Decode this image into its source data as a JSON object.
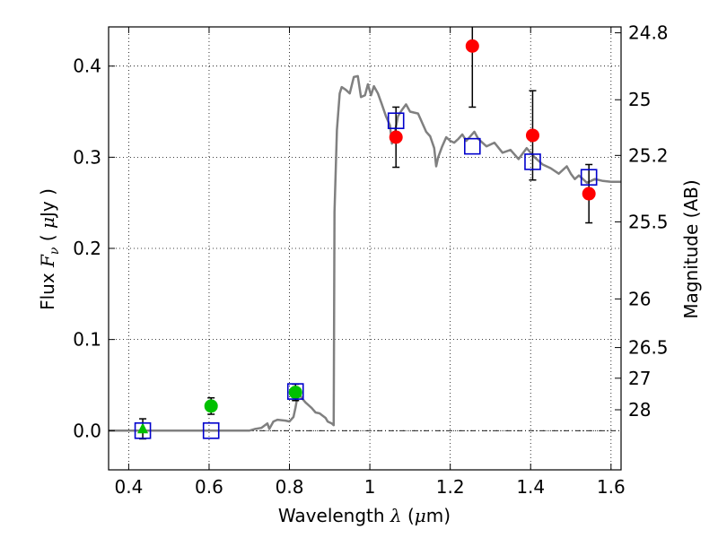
{
  "chart_data": {
    "type": "line",
    "xlabel": {
      "prefix": "Wavelength  ",
      "symbol": "λ",
      "mid": " (",
      "unit_symbol": "μ",
      "unit": "m)"
    },
    "ylabel": {
      "prefix": "Flux  ",
      "symbol": "F",
      "sub": "ν",
      "mid": "  ( ",
      "unit_symbol": "μ",
      "unit": "Jy )"
    },
    "y2label": "Magnitude (AB)",
    "xlim": [
      0.35,
      1.625
    ],
    "ylim": [
      -0.043,
      0.443
    ],
    "grid": true,
    "x_ticks": [
      {
        "v": 0.4,
        "label": "0.4"
      },
      {
        "v": 0.6,
        "label": "0.6"
      },
      {
        "v": 0.8,
        "label": "0.8"
      },
      {
        "v": 1.0,
        "label": "1"
      },
      {
        "v": 1.2,
        "label": "1.2"
      },
      {
        "v": 1.4,
        "label": "1.4"
      },
      {
        "v": 1.6,
        "label": "1.6"
      }
    ],
    "y_ticks": [
      {
        "v": 0.0,
        "label": "0.0"
      },
      {
        "v": 0.1,
        "label": "0.1"
      },
      {
        "v": 0.2,
        "label": "0.2"
      },
      {
        "v": 0.3,
        "label": "0.3"
      },
      {
        "v": 0.4,
        "label": "0.4"
      }
    ],
    "mag_ticks": [
      {
        "mag": 24.8,
        "label": "24.8"
      },
      {
        "mag": 25.0,
        "label": "25"
      },
      {
        "mag": 25.2,
        "label": "25.2"
      },
      {
        "mag": 25.5,
        "label": "25.5"
      },
      {
        "mag": 26.0,
        "label": "26"
      },
      {
        "mag": 26.5,
        "label": "26.5"
      },
      {
        "mag": 27.0,
        "label": "27"
      },
      {
        "mag": 28.0,
        "label": "28"
      }
    ],
    "model_sed": {
      "color": "#808080",
      "points": [
        [
          0.35,
          0.0
        ],
        [
          0.7,
          0.0
        ],
        [
          0.715,
          0.002
        ],
        [
          0.73,
          0.003
        ],
        [
          0.745,
          0.008
        ],
        [
          0.75,
          0.002
        ],
        [
          0.76,
          0.01
        ],
        [
          0.77,
          0.012
        ],
        [
          0.79,
          0.011
        ],
        [
          0.8,
          0.01
        ],
        [
          0.81,
          0.015
        ],
        [
          0.815,
          0.025
        ],
        [
          0.82,
          0.038
        ],
        [
          0.825,
          0.041
        ],
        [
          0.83,
          0.036
        ],
        [
          0.84,
          0.031
        ],
        [
          0.855,
          0.025
        ],
        [
          0.865,
          0.02
        ],
        [
          0.875,
          0.019
        ],
        [
          0.89,
          0.014
        ],
        [
          0.895,
          0.01
        ],
        [
          0.905,
          0.008
        ],
        [
          0.91,
          0.006
        ],
        [
          0.912,
          0.24
        ],
        [
          0.918,
          0.33
        ],
        [
          0.925,
          0.37
        ],
        [
          0.93,
          0.377
        ],
        [
          0.94,
          0.374
        ],
        [
          0.95,
          0.37
        ],
        [
          0.96,
          0.388
        ],
        [
          0.97,
          0.389
        ],
        [
          0.978,
          0.366
        ],
        [
          0.988,
          0.368
        ],
        [
          0.995,
          0.38
        ],
        [
          1.003,
          0.368
        ],
        [
          1.01,
          0.378
        ],
        [
          1.02,
          0.37
        ],
        [
          1.03,
          0.358
        ],
        [
          1.04,
          0.345
        ],
        [
          1.05,
          0.335
        ],
        [
          1.055,
          0.315
        ],
        [
          1.06,
          0.322
        ],
        [
          1.07,
          0.345
        ],
        [
          1.08,
          0.352
        ],
        [
          1.09,
          0.358
        ],
        [
          1.1,
          0.35
        ],
        [
          1.12,
          0.348
        ],
        [
          1.14,
          0.328
        ],
        [
          1.15,
          0.323
        ],
        [
          1.16,
          0.31
        ],
        [
          1.165,
          0.29
        ],
        [
          1.17,
          0.3
        ],
        [
          1.18,
          0.312
        ],
        [
          1.19,
          0.322
        ],
        [
          1.2,
          0.318
        ],
        [
          1.21,
          0.316
        ],
        [
          1.22,
          0.32
        ],
        [
          1.23,
          0.325
        ],
        [
          1.24,
          0.318
        ],
        [
          1.26,
          0.328
        ],
        [
          1.27,
          0.32
        ],
        [
          1.29,
          0.312
        ],
        [
          1.31,
          0.316
        ],
        [
          1.33,
          0.305
        ],
        [
          1.35,
          0.308
        ],
        [
          1.37,
          0.298
        ],
        [
          1.39,
          0.31
        ],
        [
          1.41,
          0.3
        ],
        [
          1.43,
          0.292
        ],
        [
          1.45,
          0.288
        ],
        [
          1.47,
          0.282
        ],
        [
          1.49,
          0.29
        ],
        [
          1.5,
          0.282
        ],
        [
          1.51,
          0.276
        ],
        [
          1.52,
          0.28
        ],
        [
          1.53,
          0.276
        ],
        [
          1.54,
          0.272
        ],
        [
          1.56,
          0.276
        ],
        [
          1.58,
          0.274
        ],
        [
          1.6,
          0.273
        ],
        [
          1.625,
          0.273
        ]
      ]
    },
    "observed_red": [
      {
        "x": 1.065,
        "y": 0.322,
        "err": 0.033
      },
      {
        "x": 1.255,
        "y": 0.422,
        "err": 0.067
      },
      {
        "x": 1.405,
        "y": 0.324,
        "err": 0.049
      },
      {
        "x": 1.545,
        "y": 0.26,
        "err": 0.032
      }
    ],
    "observed_green_circle": [
      {
        "x": 0.605,
        "y": 0.027,
        "err": 0.009
      },
      {
        "x": 0.815,
        "y": 0.042,
        "err": 0.009
      }
    ],
    "observed_green_triangle": [
      {
        "x": 0.435,
        "y": 0.002,
        "err": 0.011
      }
    ],
    "model_synthetic_squares": [
      {
        "x": 0.435,
        "y": 0.0
      },
      {
        "x": 0.605,
        "y": 0.0
      },
      {
        "x": 0.815,
        "y": 0.043
      },
      {
        "x": 1.065,
        "y": 0.34
      },
      {
        "x": 1.255,
        "y": 0.312
      },
      {
        "x": 1.405,
        "y": 0.295
      },
      {
        "x": 1.545,
        "y": 0.278
      }
    ],
    "colors": {
      "red": "#ff0000",
      "green": "#00c000",
      "square": "#0000cc",
      "errorbar": "#000000",
      "grid": "#000000"
    }
  }
}
